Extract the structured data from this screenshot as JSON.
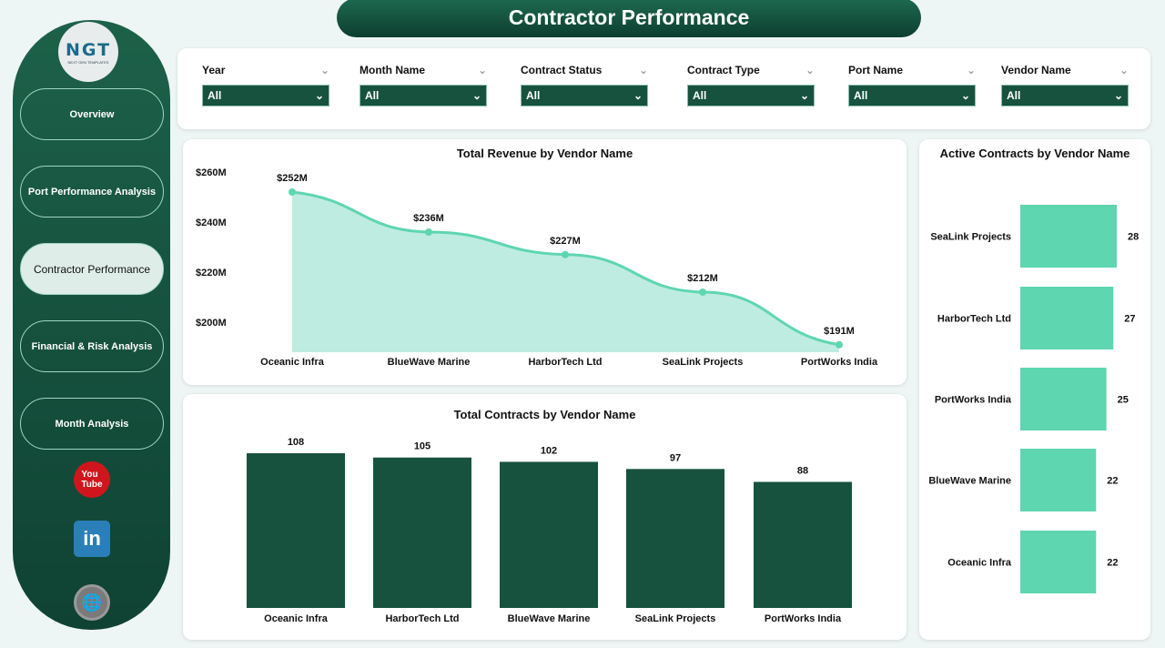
{
  "header": {
    "title": "Contractor Performance"
  },
  "logo": {
    "text": "NGT",
    "tagline": "NEXT GEN TEMPLATES"
  },
  "sidebar": {
    "items": [
      {
        "label": "Overview"
      },
      {
        "label": "Port Performance Analysis"
      },
      {
        "label": "Contractor Performance",
        "active": true
      },
      {
        "label": "Financial & Risk Analysis"
      },
      {
        "label": "Month Analysis"
      }
    ],
    "social": [
      {
        "icon": "youtube-icon",
        "color": "#d0161c"
      },
      {
        "icon": "linkedin-icon",
        "color": "#2a7fb8"
      },
      {
        "icon": "globe-icon",
        "color": "#7a7a7a"
      }
    ]
  },
  "filters": [
    {
      "label": "Year",
      "value": "All"
    },
    {
      "label": "Month Name",
      "value": "All"
    },
    {
      "label": "Contract Status",
      "value": "All"
    },
    {
      "label": "Contract Type",
      "value": "All"
    },
    {
      "label": "Port Name",
      "value": "All"
    },
    {
      "label": "Vendor Name",
      "value": "All"
    }
  ],
  "colors": {
    "primary": "#17523f",
    "accent": "#5ed6b0",
    "area": "#bfece0"
  },
  "chart_data": [
    {
      "type": "area",
      "title": "Total Revenue by Vendor Name",
      "categories": [
        "Oceanic Infra",
        "BlueWave Marine",
        "HarborTech Ltd",
        "SeaLink Projects",
        "PortWorks India"
      ],
      "values": [
        252,
        236,
        227,
        212,
        191
      ],
      "data_labels": [
        "$252M",
        "$236M",
        "$227M",
        "$212M",
        "$191M"
      ],
      "unit": "$M",
      "yticks": [
        "$200M",
        "$220M",
        "$240M",
        "$260M"
      ],
      "ytick_values": [
        200,
        220,
        240,
        260
      ],
      "ylim": [
        188,
        262
      ],
      "grid": false
    },
    {
      "type": "bar",
      "title": "Total Contracts by Vendor Name",
      "categories": [
        "Oceanic Infra",
        "HarborTech Ltd",
        "BlueWave Marine",
        "SeaLink Projects",
        "PortWorks India"
      ],
      "values": [
        108,
        105,
        102,
        97,
        88
      ],
      "ylim": [
        0,
        108
      ],
      "grid": false
    },
    {
      "type": "bar",
      "orientation": "horizontal",
      "title": "Active Contracts by Vendor Name",
      "categories": [
        "SeaLink Projects",
        "HarborTech Ltd",
        "PortWorks India",
        "BlueWave Marine",
        "Oceanic Infra"
      ],
      "values": [
        28,
        27,
        25,
        22,
        22
      ],
      "xlim": [
        0,
        28
      ],
      "grid": false
    }
  ]
}
